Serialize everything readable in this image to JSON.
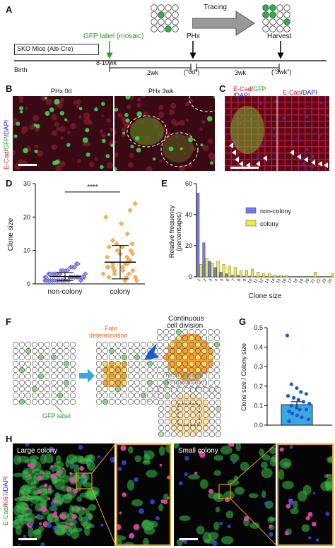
{
  "panels": {
    "a": "A",
    "b": "B",
    "c": "C",
    "d": "D",
    "e": "E",
    "f": "F",
    "g": "G",
    "h": "H"
  },
  "panel_a": {
    "tracing": "Tracing",
    "gfp_label": "GFP label (mosaic)",
    "phx": "PHx",
    "harvest": "Harvest",
    "mouse": "SKO Mice (Alb-Cre)",
    "birth": "Birth",
    "age": "8-10wk",
    "int1": "2wk",
    "d0": "(\"0d\")",
    "int2": "3wk",
    "d3": "(\"3wk\")"
  },
  "panel_b": {
    "title_left": "PHx 0d",
    "title_right": "PHx 3wk",
    "side_label_ecad": "E-Cad",
    "side_label_gfp": "GFP",
    "side_label_dapi": "DAPI"
  },
  "panel_c": {
    "label_left_ecad": "E-Cad",
    "label_left_gfp": "GFP",
    "label_left_dapi": "DAPI",
    "label_right_ecad": "E-Cad",
    "label_right_dapi": "DAPI"
  },
  "chart_data": [
    {
      "id": "D",
      "type": "scatter",
      "ylabel": "Clone size",
      "categories": [
        "non-colony",
        "colony"
      ],
      "ylim": [
        0,
        30
      ],
      "yticks": [
        0,
        10,
        20,
        30
      ],
      "significance": "****",
      "series": [
        {
          "name": "non-colony",
          "mean": 2.2,
          "sd": 1.2
        },
        {
          "name": "colony",
          "mean": 6.5,
          "sd": 5.0
        }
      ]
    },
    {
      "id": "E",
      "type": "bar",
      "ylabel": "Relative frequency (percentages)",
      "xlabel": "Clone size",
      "ylim": [
        0,
        60
      ],
      "yticks": [
        0,
        20,
        40,
        60
      ],
      "categories": [
        "1",
        "2",
        "3",
        "4",
        "5",
        "6",
        "7",
        "8",
        "9",
        "10",
        "11",
        "12",
        "13",
        "14",
        "15",
        "16",
        "17",
        "18",
        "19",
        "20",
        "21",
        "22",
        "23",
        "24"
      ],
      "series": [
        {
          "name": "non-colony",
          "color": "#7777ee",
          "values": [
            54,
            22,
            10,
            6,
            3,
            2,
            1,
            1,
            0.5,
            0.5,
            0,
            0,
            0,
            0,
            0,
            0,
            0,
            0,
            0,
            0,
            0,
            0,
            0,
            0
          ]
        },
        {
          "name": "colony",
          "color": "#eeee33",
          "values": [
            8,
            12,
            9,
            10,
            8,
            7,
            6,
            4,
            4,
            5,
            3,
            2,
            2,
            1,
            1,
            1,
            0,
            0,
            0,
            0,
            3,
            0,
            0,
            2
          ]
        }
      ]
    },
    {
      "id": "G",
      "type": "bar",
      "ylabel": "Clone size / Colony size",
      "ylim": [
        0,
        0.5
      ],
      "yticks": [
        0.0,
        0.1,
        0.2,
        0.3,
        0.4,
        0.5
      ],
      "values": [
        0.105
      ],
      "error": 0.015,
      "points": [
        0.46,
        0.21,
        0.19,
        0.17,
        0.16,
        0.15,
        0.14,
        0.13,
        0.12,
        0.11,
        0.1,
        0.09,
        0.08,
        0.08,
        0.07,
        0.06,
        0.05,
        0.04,
        0.03,
        0.02
      ]
    }
  ],
  "panel_f": {
    "fate": "Fate",
    "determination": "determination",
    "continuous": "Continuous",
    "cell_division": "cell division",
    "recruitment": "Recruitment",
    "propagation": "(Propagation)",
    "gfp_label": "GFP label"
  },
  "panel_h": {
    "large": "Large colony",
    "small": "Small colony",
    "side_ecad": "E-Cad",
    "side_ki67": "Ki67",
    "side_dapi": "DAPI"
  }
}
